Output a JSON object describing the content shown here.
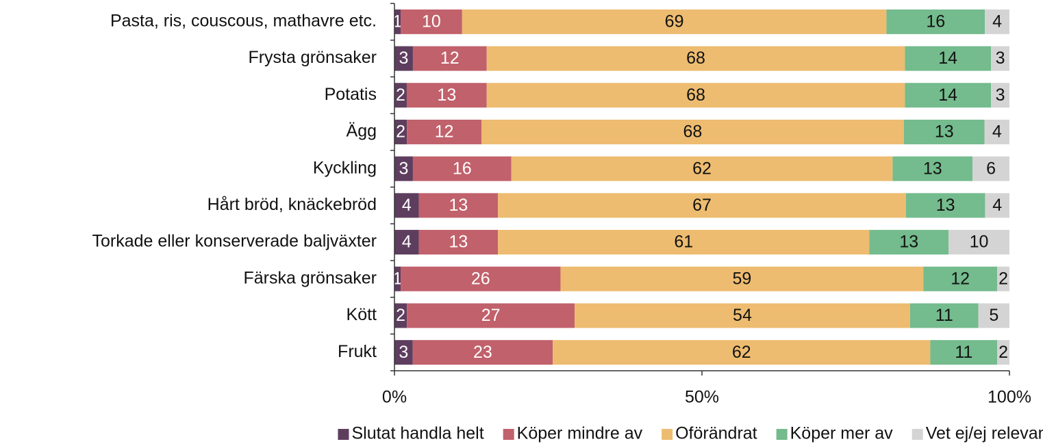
{
  "chart_data": {
    "type": "bar",
    "orientation": "horizontal",
    "stacking": "percent",
    "categories": [
      "Pasta, ris, couscous, mathavre etc.",
      "Frysta grönsaker",
      "Potatis",
      "Ägg",
      "Kyckling",
      "Hårt bröd, knäckebröd",
      "Torkade eller konserverade baljväxter",
      "Färska grönsaker",
      "Kött",
      "Frukt"
    ],
    "series": [
      {
        "name": "Slutat handla helt",
        "color": "#5e3e5f",
        "values": [
          1,
          3,
          2,
          2,
          3,
          4,
          4,
          1,
          2,
          3
        ]
      },
      {
        "name": "Köper mindre av",
        "color": "#c1616b",
        "values": [
          10,
          12,
          13,
          12,
          16,
          13,
          13,
          26,
          27,
          23
        ]
      },
      {
        "name": "Oförändrat",
        "color": "#edbc70",
        "values": [
          69,
          68,
          68,
          68,
          62,
          67,
          61,
          59,
          54,
          62
        ]
      },
      {
        "name": "Köper mer av",
        "color": "#74bb8d",
        "values": [
          16,
          14,
          14,
          13,
          13,
          13,
          13,
          12,
          11,
          11
        ]
      },
      {
        "name": "Vet ej/ej relevant",
        "color": "#d4d4d4",
        "values": [
          4,
          3,
          3,
          4,
          6,
          4,
          10,
          2,
          5,
          2
        ]
      }
    ],
    "xlim": [
      0,
      100
    ],
    "xticks": [
      {
        "value": 0,
        "label": "0%"
      },
      {
        "value": 50,
        "label": "50%"
      },
      {
        "value": 100,
        "label": "100%"
      }
    ],
    "legend": "bottom"
  }
}
